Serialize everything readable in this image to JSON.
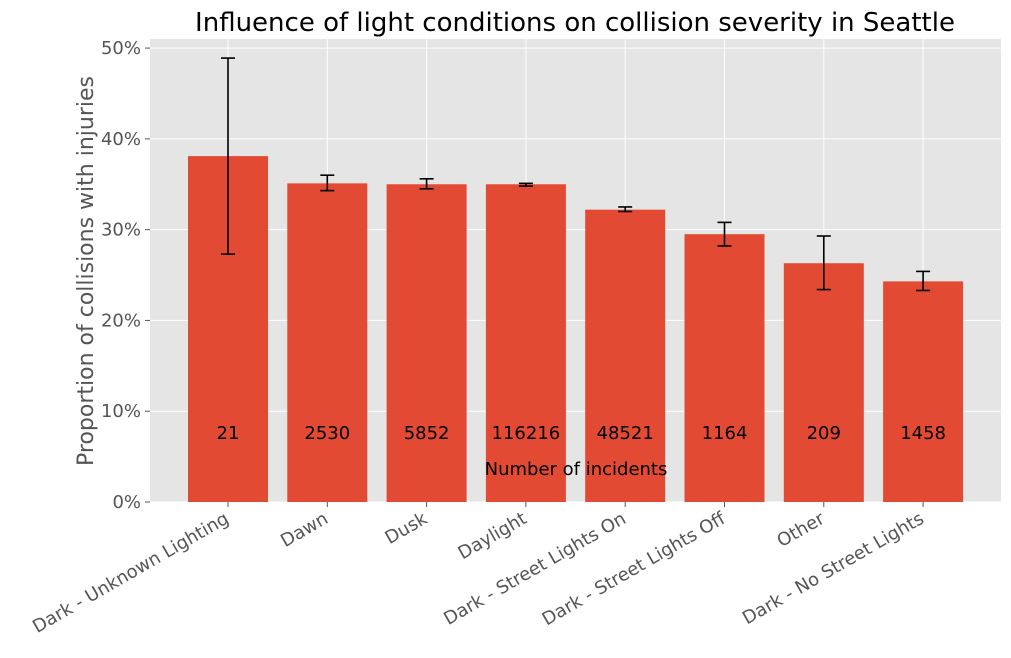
{
  "chart_data": {
    "type": "bar",
    "title": "Influence of light conditions on collision severity in Seattle",
    "xlabel": "",
    "ylabel": "Proportion of collisions with injuries",
    "ylim": [
      0,
      0.51
    ],
    "yticks": [
      "0%",
      "10%",
      "20%",
      "30%",
      "40%",
      "50%"
    ],
    "grid": true,
    "categories": [
      "Dark - Unknown Lighting",
      "Dawn",
      "Dusk",
      "Daylight",
      "Dark - Street Lights On",
      "Dark - Street Lights Off",
      "Other",
      "Dark - No Street Lights"
    ],
    "values": [
      0.381,
      0.351,
      0.35,
      0.35,
      0.322,
      0.295,
      0.263,
      0.243
    ],
    "error_low": [
      0.273,
      0.343,
      0.345,
      0.348,
      0.32,
      0.282,
      0.234,
      0.233
    ],
    "error_high": [
      0.489,
      0.36,
      0.356,
      0.351,
      0.325,
      0.308,
      0.293,
      0.254
    ],
    "counts": [
      "21",
      "2530",
      "5852",
      "116216",
      "48521",
      "1164",
      "209",
      "1458"
    ],
    "counts_label": "Number of incidents",
    "bar_color": "#E24A33",
    "background_color": "#E5E5E5",
    "grid_color": "#FFFFFF"
  }
}
